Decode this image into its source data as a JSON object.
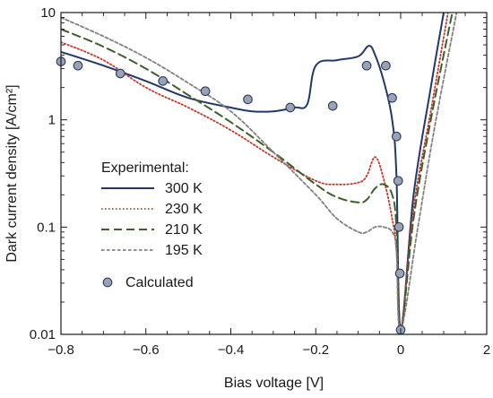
{
  "chart_data": {
    "type": "line",
    "xlabel": "Bias voltage [V]",
    "ylabel": "Dark current density [A/cm²]",
    "y_scale": "log",
    "grid": false,
    "xlim": [
      -0.8,
      2
    ],
    "ylim": [
      0.01,
      10
    ],
    "x_axis_break": {
      "from": 0,
      "to": 2,
      "note": "axis scale changes after 0; 0 to 2 V compressed"
    },
    "x_ticks": [
      -0.8,
      -0.6,
      -0.4,
      -0.2,
      0,
      2
    ],
    "x_tick_labels": [
      "−0.8",
      "−0.6",
      "−0.4",
      "−0.2",
      "0",
      "2"
    ],
    "y_ticks": [
      0.01,
      0.1,
      1,
      10
    ],
    "y_tick_labels": [
      "0.01",
      "0.1",
      "1",
      "10"
    ],
    "legend": {
      "title": "Experimental:",
      "position": "lower-left",
      "entries": [
        "300 K",
        "230 K",
        "210 K",
        "195 K",
        "Calculated"
      ]
    },
    "series": [
      {
        "name": "300 K",
        "style": "solid",
        "color": "#22386a",
        "x": [
          -0.8,
          -0.7,
          -0.6,
          -0.5,
          -0.4,
          -0.35,
          -0.3,
          -0.25,
          -0.22,
          -0.2,
          -0.15,
          -0.1,
          -0.075,
          -0.06,
          -0.04,
          -0.02,
          -0.01,
          0,
          0.3,
          0.7,
          1.0
        ],
        "y": [
          4.3,
          3.2,
          2.3,
          1.6,
          1.3,
          1.2,
          1.2,
          1.3,
          1.4,
          3.2,
          3.6,
          3.9,
          4.9,
          4.0,
          2.3,
          1.0,
          0.3,
          0.011,
          0.2,
          2.0,
          10
        ]
      },
      {
        "name": "230 K",
        "style": "dotted",
        "color": "#c0392b",
        "x": [
          -0.8,
          -0.7,
          -0.6,
          -0.5,
          -0.4,
          -0.3,
          -0.2,
          -0.15,
          -0.1,
          -0.08,
          -0.06,
          -0.04,
          -0.02,
          -0.01,
          0,
          0.3,
          0.7,
          1.1
        ],
        "y": [
          5.3,
          3.6,
          2.0,
          1.3,
          0.8,
          0.45,
          0.27,
          0.25,
          0.26,
          0.3,
          0.45,
          0.28,
          0.12,
          0.06,
          0.011,
          0.15,
          1.2,
          10
        ]
      },
      {
        "name": "210 K",
        "style": "dashed",
        "color": "#3f5f2a",
        "x": [
          -0.8,
          -0.7,
          -0.6,
          -0.5,
          -0.4,
          -0.3,
          -0.2,
          -0.15,
          -0.1,
          -0.08,
          -0.06,
          -0.04,
          -0.02,
          -0.01,
          0,
          0.3,
          0.7,
          1.2
        ],
        "y": [
          7.0,
          4.8,
          3.0,
          1.7,
          0.95,
          0.5,
          0.25,
          0.19,
          0.17,
          0.18,
          0.23,
          0.25,
          0.2,
          0.1,
          0.011,
          0.12,
          1.0,
          10
        ]
      },
      {
        "name": "195 K",
        "style": "short-dash",
        "color": "#808080",
        "x": [
          -0.8,
          -0.7,
          -0.6,
          -0.5,
          -0.4,
          -0.3,
          -0.2,
          -0.15,
          -0.1,
          -0.08,
          -0.06,
          -0.04,
          -0.02,
          -0.01,
          0,
          0.4,
          0.8,
          1.3
        ],
        "y": [
          9.0,
          6.0,
          3.8,
          2.2,
          1.2,
          0.5,
          0.2,
          0.12,
          0.09,
          0.09,
          0.1,
          0.1,
          0.09,
          0.06,
          0.011,
          0.1,
          0.9,
          10
        ]
      },
      {
        "name": "Calculated",
        "style": "markers",
        "color": "#9aa3b5",
        "x": [
          -0.8,
          -0.76,
          -0.66,
          -0.56,
          -0.46,
          -0.36,
          -0.26,
          -0.16,
          -0.08,
          -0.035,
          -0.02,
          -0.01,
          -0.006,
          -0.004,
          -0.002,
          0
        ],
        "y": [
          3.5,
          3.2,
          2.7,
          2.3,
          1.85,
          1.55,
          1.3,
          1.35,
          3.2,
          3.2,
          1.6,
          0.7,
          0.27,
          0.1,
          0.037,
          0.011
        ]
      }
    ]
  }
}
